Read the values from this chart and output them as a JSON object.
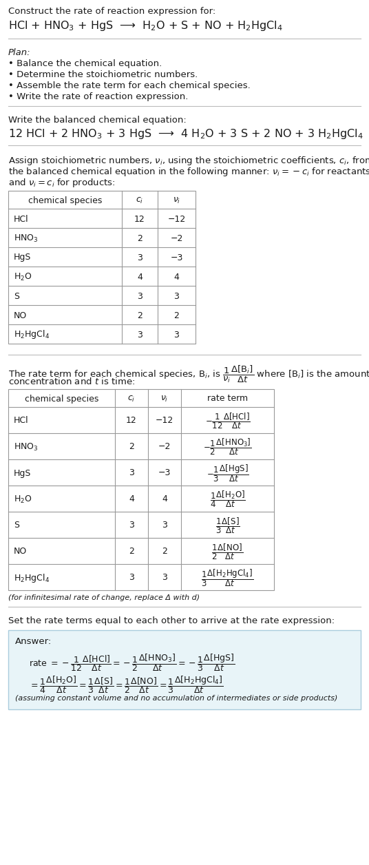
{
  "bg_color": "#ffffff",
  "text_color": "#1a1a1a",
  "title_line1": "Construct the rate of reaction expression for:",
  "reaction_unbalanced": "HCl + HNO$_3$ + HgS  ⟶  H$_2$O + S + NO + H$_2$HgCl$_4$",
  "plan_title": "Plan:",
  "plan_items": [
    "• Balance the chemical equation.",
    "• Determine the stoichiometric numbers.",
    "• Assemble the rate term for each chemical species.",
    "• Write the rate of reaction expression."
  ],
  "balanced_label": "Write the balanced chemical equation:",
  "balanced_eq": "12 HCl + 2 HNO$_3$ + 3 HgS  ⟶  4 H$_2$O + 3 S + 2 NO + 3 H$_2$HgCl$_4$",
  "stoich_intro": "Assign stoichiometric numbers, $\\nu_i$, using the stoichiometric coefficients, $c_i$, from\nthe balanced chemical equation in the following manner: $\\nu_i = -c_i$ for reactants\nand $\\nu_i = c_i$ for products:",
  "table1_headers": [
    "chemical species",
    "$c_i$",
    "$\\nu_i$"
  ],
  "table1_data": [
    [
      "HCl",
      "12",
      "−12"
    ],
    [
      "HNO$_3$",
      "2",
      "−2"
    ],
    [
      "HgS",
      "3",
      "−3"
    ],
    [
      "H$_2$O",
      "4",
      "4"
    ],
    [
      "S",
      "3",
      "3"
    ],
    [
      "NO",
      "2",
      "2"
    ],
    [
      "H$_2$HgCl$_4$",
      "3",
      "3"
    ]
  ],
  "rate_intro_p1": "The rate term for each chemical species, B$_i$, is $\\dfrac{1}{\\nu_i}\\dfrac{\\Delta[\\mathrm{B}_i]}{\\Delta t}$ where [B$_i$] is the amount",
  "rate_intro_p2": "concentration and $t$ is time:",
  "table2_headers": [
    "chemical species",
    "$c_i$",
    "$\\nu_i$",
    "rate term"
  ],
  "table2_data": [
    [
      "HCl",
      "12",
      "−12",
      "$-\\dfrac{1}{12}\\dfrac{\\Delta[\\mathrm{HCl}]}{\\Delta t}$"
    ],
    [
      "HNO$_3$",
      "2",
      "−2",
      "$-\\dfrac{1}{2}\\dfrac{\\Delta[\\mathrm{HNO_3}]}{\\Delta t}$"
    ],
    [
      "HgS",
      "3",
      "−3",
      "$-\\dfrac{1}{3}\\dfrac{\\Delta[\\mathrm{HgS}]}{\\Delta t}$"
    ],
    [
      "H$_2$O",
      "4",
      "4",
      "$\\dfrac{1}{4}\\dfrac{\\Delta[\\mathrm{H_2O}]}{\\Delta t}$"
    ],
    [
      "S",
      "3",
      "3",
      "$\\dfrac{1}{3}\\dfrac{\\Delta[\\mathrm{S}]}{\\Delta t}$"
    ],
    [
      "NO",
      "2",
      "2",
      "$\\dfrac{1}{2}\\dfrac{\\Delta[\\mathrm{NO}]}{\\Delta t}$"
    ],
    [
      "H$_2$HgCl$_4$",
      "3",
      "3",
      "$\\dfrac{1}{3}\\dfrac{\\Delta[\\mathrm{H_2HgCl_4}]}{\\Delta t}$"
    ]
  ],
  "infinitesimal_note": "(for infinitesimal rate of change, replace Δ with d)",
  "set_equal_label": "Set the rate terms equal to each other to arrive at the rate expression:",
  "answer_label": "Answer:",
  "answer_bg": "#e8f4f8",
  "answer_border": "#aaccdd",
  "rate_expr_line1": "rate $= -\\dfrac{1}{12}\\dfrac{\\Delta[\\mathrm{HCl}]}{\\Delta t} = -\\dfrac{1}{2}\\dfrac{\\Delta[\\mathrm{HNO_3}]}{\\Delta t} = -\\dfrac{1}{3}\\dfrac{\\Delta[\\mathrm{HgS}]}{\\Delta t}$",
  "rate_expr_line2": "$= \\dfrac{1}{4}\\dfrac{\\Delta[\\mathrm{H_2O}]}{\\Delta t} = \\dfrac{1}{3}\\dfrac{\\Delta[\\mathrm{S}]}{\\Delta t} = \\dfrac{1}{2}\\dfrac{\\Delta[\\mathrm{NO}]}{\\Delta t} = \\dfrac{1}{3}\\dfrac{\\Delta[\\mathrm{H_2HgCl_4}]}{\\Delta t}$",
  "assuming_note": "(assuming constant volume and no accumulation of intermediates or side products)"
}
